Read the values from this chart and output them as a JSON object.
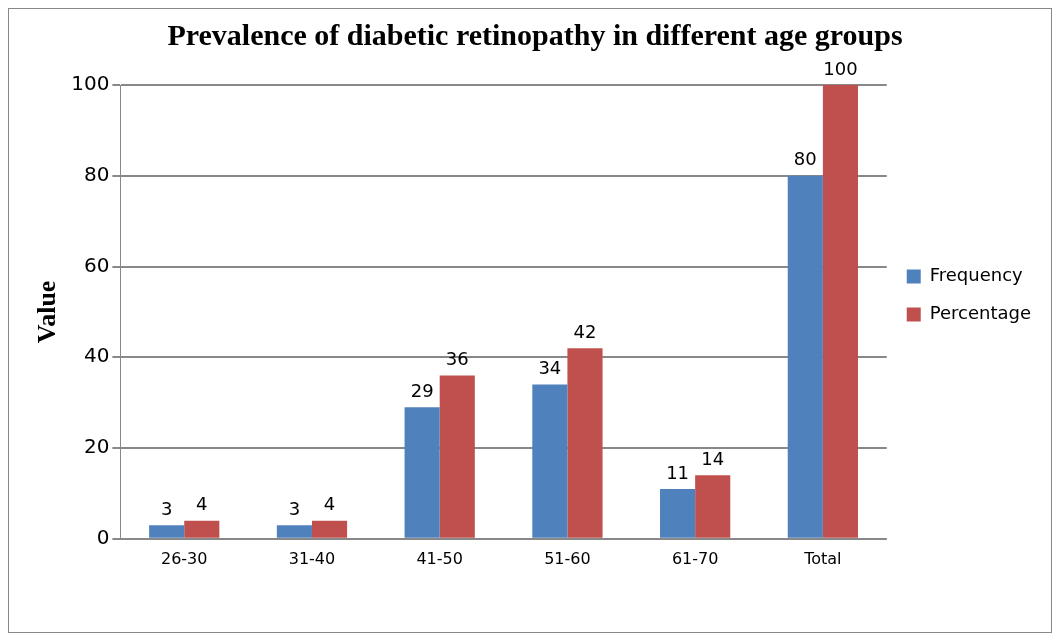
{
  "chart_data": {
    "type": "bar",
    "title": "Prevalence of diabetic retinopathy in different age groups",
    "ylabel": "Value",
    "categories": [
      "26-30",
      "31-40",
      "41-50",
      "51-60",
      "61-70",
      "Total"
    ],
    "series": [
      {
        "name": "Frequency",
        "color": "#4f81bd",
        "values": [
          3,
          3,
          29,
          34,
          11,
          80
        ]
      },
      {
        "name": "Percentage",
        "color": "#c0504d",
        "values": [
          4,
          4,
          36,
          42,
          14,
          100
        ]
      }
    ],
    "ylim": [
      0,
      100
    ],
    "yticks": [
      0,
      20,
      40,
      60,
      80,
      100
    ],
    "grid": "y",
    "legend": "right",
    "data_labels": true
  }
}
